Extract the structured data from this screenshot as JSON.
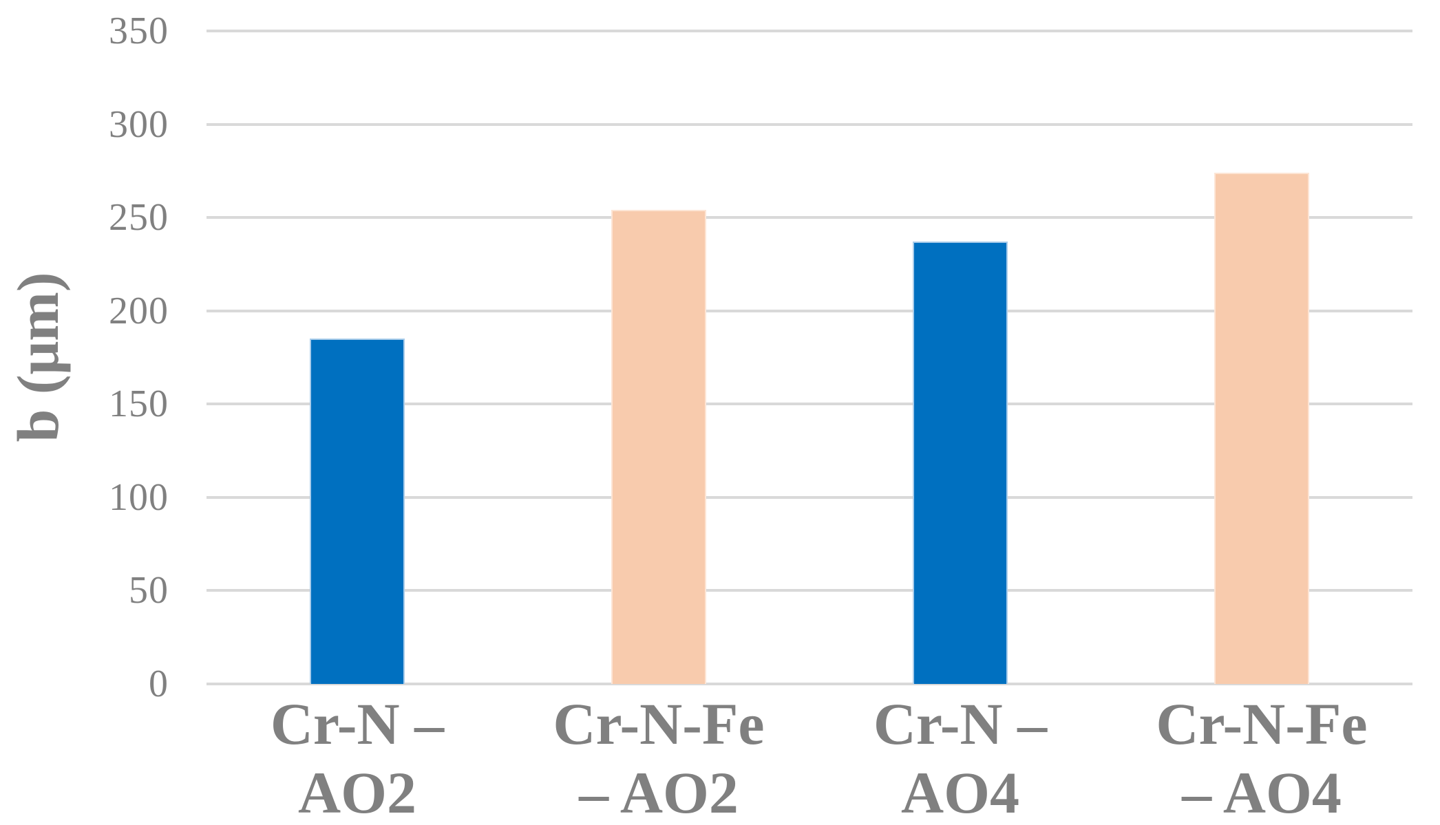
{
  "chart_data": {
    "type": "bar",
    "title": "",
    "xlabel": "",
    "ylabel": "b (μm)",
    "unit": "μm",
    "categories": [
      "Cr-N – AO2",
      "Cr-N-Fe – AO2",
      "Cr-N – AO4",
      "Cr-N-Fe – AO4"
    ],
    "category_lines": [
      [
        "Cr-N –",
        "AO2"
      ],
      [
        "Cr-N-Fe",
        "– AO2"
      ],
      [
        "Cr-N –",
        "AO4"
      ],
      [
        "Cr-N-Fe",
        "– AO4"
      ]
    ],
    "values": [
      185,
      254,
      237,
      274
    ],
    "ylim": [
      0,
      350
    ],
    "yticks": [
      0,
      50,
      100,
      150,
      200,
      250,
      300,
      350
    ],
    "grid": "horizontal",
    "legend_position": "none",
    "bar_colors": [
      "#0070C0",
      "#F8CBAD",
      "#0070C0",
      "#F8CBAD"
    ],
    "bar_border_colors": [
      "#A9CCEA",
      "#FDE5D5",
      "#A9CCEA",
      "#FDE5D5"
    ],
    "gridline_color": "#D9D9D9",
    "text_color": "#808080",
    "background_color": "#FFFFFF"
  }
}
